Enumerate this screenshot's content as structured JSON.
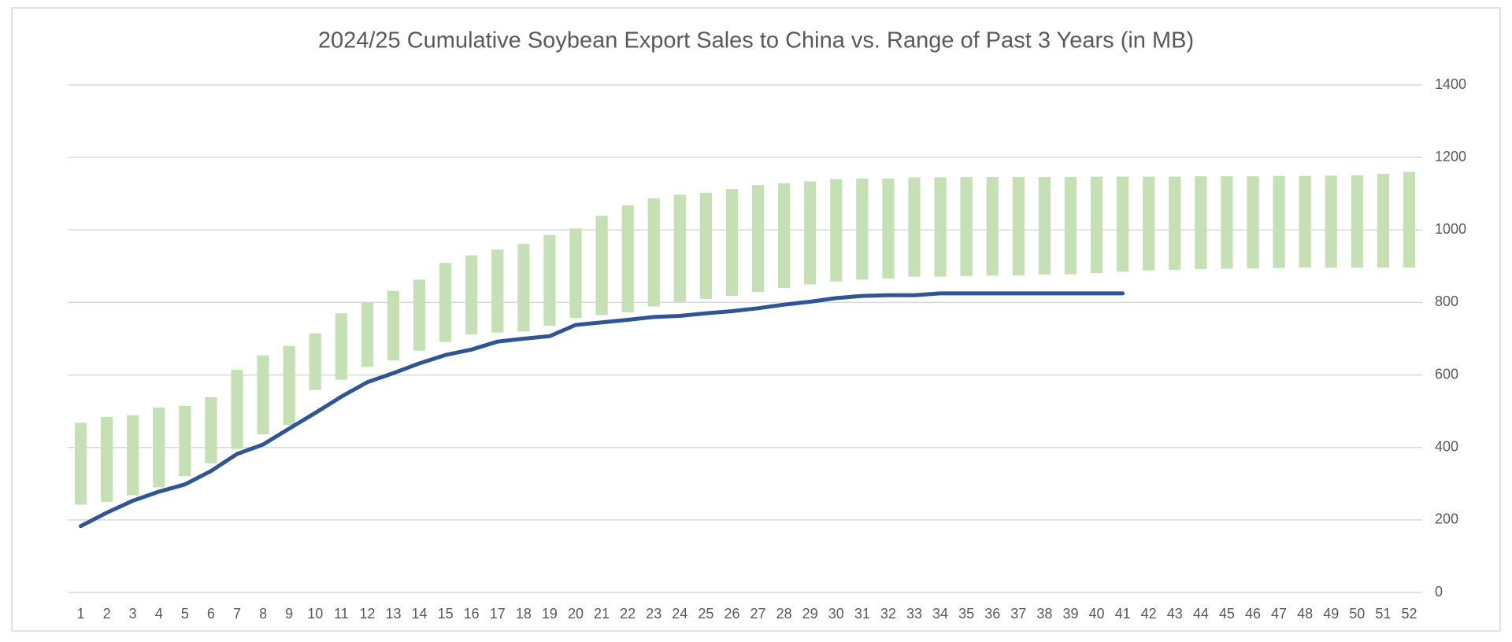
{
  "chart_data": {
    "type": "combo",
    "title": "2024/25 Cumulative Soybean Export Sales to China vs. Range of Past 3 Years (in MB)",
    "categories": [
      1,
      2,
      3,
      4,
      5,
      6,
      7,
      8,
      9,
      10,
      11,
      12,
      13,
      14,
      15,
      16,
      17,
      18,
      19,
      20,
      21,
      22,
      23,
      24,
      25,
      26,
      27,
      28,
      29,
      30,
      31,
      32,
      33,
      34,
      35,
      36,
      37,
      38,
      39,
      40,
      41,
      42,
      43,
      44,
      45,
      46,
      47,
      48,
      49,
      50,
      51,
      52
    ],
    "series": [
      {
        "type": "range",
        "color": "#c5e0b4",
        "low": [
          242,
          250,
          268,
          290,
          321,
          356,
          396,
          436,
          462,
          558,
          587,
          622,
          640,
          667,
          691,
          712,
          717,
          720,
          736,
          757,
          765,
          773,
          789,
          802,
          810,
          818,
          829,
          840,
          850,
          858,
          863,
          866,
          871,
          871,
          873,
          874,
          875,
          877,
          878,
          881,
          885,
          888,
          890,
          892,
          893,
          894,
          895,
          896,
          896,
          896,
          896,
          896
        ],
        "high": [
          468,
          484,
          489,
          510,
          515,
          539,
          614,
          654,
          680,
          715,
          770,
          800,
          832,
          863,
          909,
          930,
          946,
          962,
          986,
          1004,
          1039,
          1068,
          1087,
          1097,
          1103,
          1113,
          1124,
          1129,
          1134,
          1140,
          1142,
          1142,
          1145,
          1145,
          1146,
          1146,
          1146,
          1146,
          1146,
          1147,
          1147,
          1147,
          1147,
          1148,
          1148,
          1148,
          1149,
          1149,
          1150,
          1151,
          1155,
          1160
        ]
      },
      {
        "type": "line",
        "color": "#2f5597",
        "values": [
          183,
          220,
          253,
          278,
          298,
          335,
          382,
          408,
          452,
          495,
          540,
          580,
          605,
          632,
          655,
          670,
          692,
          700,
          707,
          738,
          745,
          752,
          760,
          763,
          770,
          776,
          784,
          794,
          802,
          812,
          818,
          820,
          820,
          825,
          825,
          825,
          825,
          825,
          825,
          825,
          825,
          null,
          null,
          null,
          null,
          null,
          null,
          null,
          null,
          null,
          null,
          null
        ]
      }
    ],
    "ylim": [
      0,
      1400
    ],
    "yticks": [
      0,
      200,
      400,
      600,
      800,
      1000,
      1200,
      1400
    ],
    "grid": true
  }
}
